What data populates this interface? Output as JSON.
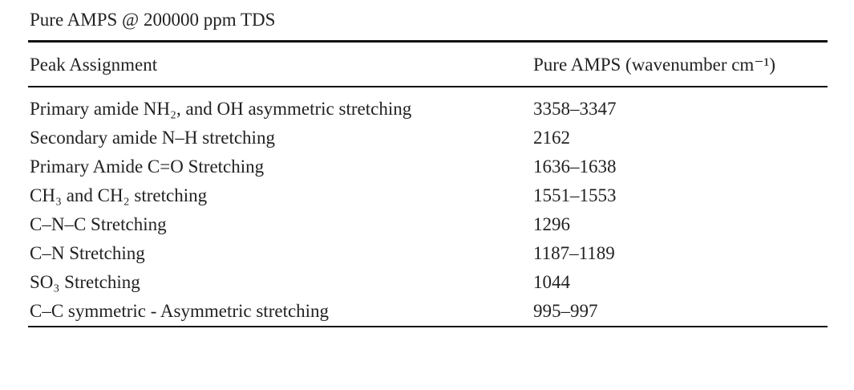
{
  "title": "Pure AMPS @ 200000 ppm TDS",
  "table": {
    "header": [
      "Peak Assignment",
      "Pure AMPS (wavenumber cm⁻¹)"
    ],
    "rows": [
      [
        "Primary amide NH₂, and OH asymmetric stretching",
        "3358–3347"
      ],
      [
        "Secondary amide N–H stretching",
        "2162"
      ],
      [
        "Primary Amide C=O Stretching",
        "1636–1638"
      ],
      [
        "CH₃ and CH₂ stretching",
        "1551–1553"
      ],
      [
        "C–N–C Stretching",
        "1296"
      ],
      [
        "C–N Stretching",
        "1187–1189"
      ],
      [
        "SO₃ Stretching",
        "1044"
      ],
      [
        "C–C symmetric - Asymmetric stretching",
        "995–997"
      ]
    ]
  }
}
